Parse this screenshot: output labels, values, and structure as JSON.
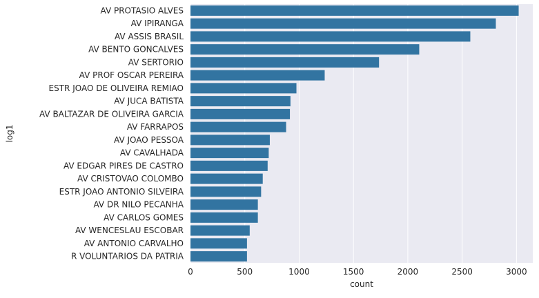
{
  "chart_data": {
    "type": "bar",
    "orientation": "horizontal",
    "title": "",
    "xlabel": "count",
    "ylabel": "log1",
    "xlim": [
      0,
      3150
    ],
    "x_ticks": [
      0,
      500,
      1000,
      1500,
      2000,
      2500,
      3000
    ],
    "grid": true,
    "bar_color": "#3274a1",
    "background_color": "#eaeaf2",
    "grid_color": "#ffffff",
    "categories": [
      "AV PROTASIO ALVES",
      "AV IPIRANGA",
      "AV ASSIS BRASIL",
      "AV BENTO GONCALVES",
      "AV SERTORIO",
      "AV PROF OSCAR PEREIRA",
      "ESTR JOAO DE OLIVEIRA REMIAO",
      "AV JUCA BATISTA",
      "AV BALTAZAR DE OLIVEIRA GARCIA",
      "AV FARRAPOS",
      "AV JOAO PESSOA",
      "AV CAVALHADA",
      "AV EDGAR PIRES DE CASTRO",
      "AV CRISTOVAO COLOMBO",
      "ESTR JOAO ANTONIO SILVEIRA",
      "AV DR NILO PECANHA",
      "AV CARLOS GOMES",
      "AV WENCESLAU ESCOBAR",
      "AV ANTONIO CARVALHO",
      "R VOLUNTARIOS DA PATRIA"
    ],
    "values": [
      3020,
      2810,
      2575,
      2105,
      1735,
      1235,
      975,
      920,
      915,
      880,
      730,
      720,
      710,
      665,
      650,
      620,
      620,
      545,
      520,
      520
    ]
  }
}
